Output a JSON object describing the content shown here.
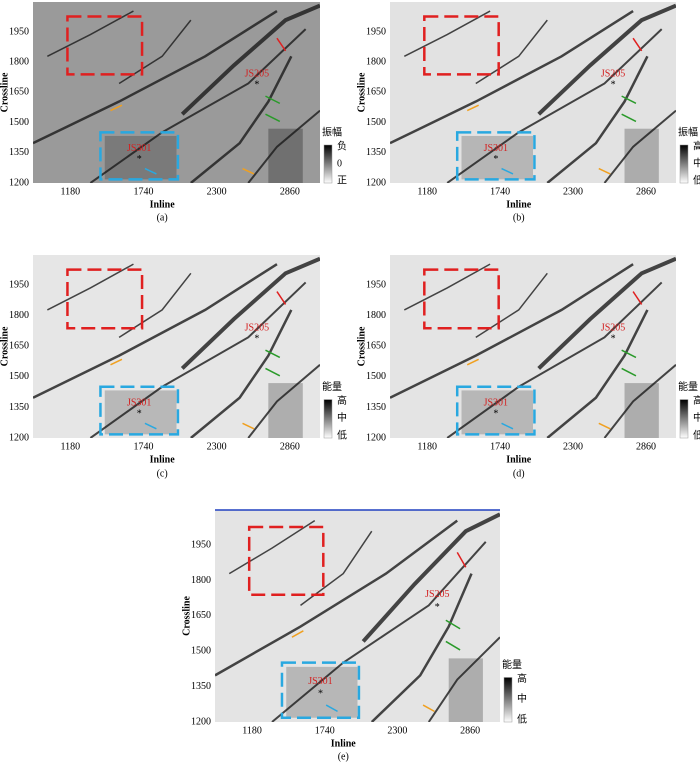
{
  "panels": [
    {
      "caption": "(a)",
      "ylabel": "Crossline",
      "xlabel": "Inline",
      "yticks": [
        1950,
        1800,
        1650,
        1500,
        1350,
        1200
      ],
      "xticks": [
        1180,
        1740,
        2300,
        2860
      ],
      "colorbar": {
        "title": "振幅",
        "labels": [
          "负",
          "0",
          "正"
        ]
      },
      "wells": [
        "JS205",
        "JS301"
      ]
    },
    {
      "caption": "(b)",
      "ylabel": "Crossline",
      "xlabel": "Inline",
      "yticks": [
        1950,
        1800,
        1650,
        1500,
        1350,
        1200
      ],
      "xticks": [
        1180,
        1740,
        2300,
        2860
      ],
      "colorbar": {
        "title": "振幅",
        "labels": [
          "高",
          "中",
          "低"
        ]
      },
      "wells": [
        "JS205",
        "JS301"
      ]
    },
    {
      "caption": "(c)",
      "ylabel": "Crossline",
      "xlabel": "Inline",
      "yticks": [
        1950,
        1800,
        1650,
        1500,
        1350,
        1200
      ],
      "xticks": [
        1180,
        1740,
        2300,
        2860
      ],
      "colorbar": {
        "title": "能量",
        "labels": [
          "高",
          "中",
          "低"
        ]
      },
      "wells": [
        "JS205",
        "JS301"
      ]
    },
    {
      "caption": "(d)",
      "ylabel": "Crossline",
      "xlabel": "Inline",
      "yticks": [
        1950,
        1800,
        1650,
        1500,
        1350,
        1200
      ],
      "xticks": [
        1180,
        1740,
        2300,
        2860
      ],
      "colorbar": {
        "title": "能量",
        "labels": [
          "高",
          "中",
          "低"
        ]
      },
      "wells": [
        "JS205",
        "JS301"
      ]
    },
    {
      "caption": "(e)",
      "ylabel": "Crossline",
      "xlabel": "Inline",
      "yticks": [
        1950,
        1800,
        1650,
        1500,
        1350,
        1200
      ],
      "xticks": [
        1180,
        1740,
        2300,
        2860
      ],
      "colorbar": {
        "title": "能量",
        "labels": [
          "高",
          "中",
          "低"
        ]
      },
      "wells": [
        "JS205",
        "JS301"
      ]
    }
  ]
}
